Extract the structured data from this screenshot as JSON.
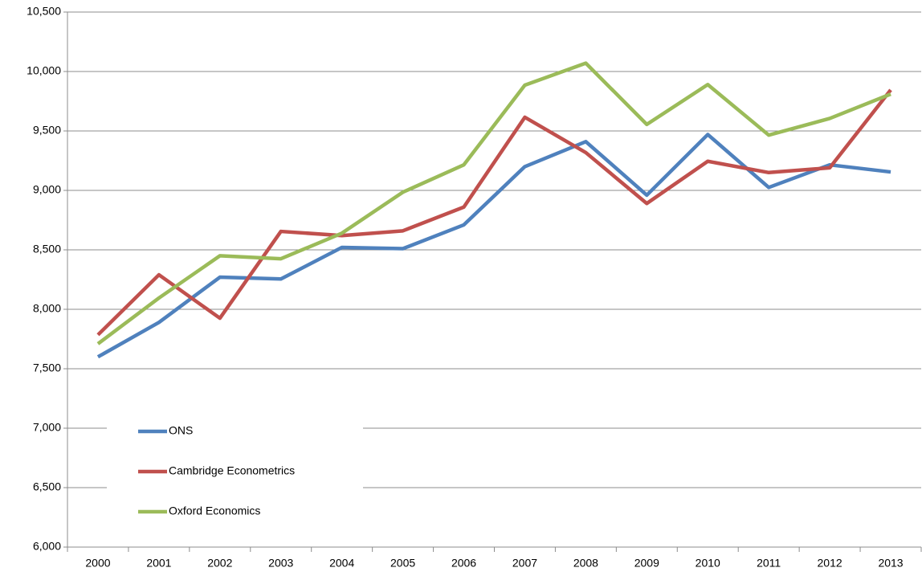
{
  "chart_data": {
    "type": "line",
    "categories": [
      "2000",
      "2001",
      "2002",
      "2003",
      "2004",
      "2005",
      "2006",
      "2007",
      "2008",
      "2009",
      "2010",
      "2011",
      "2012",
      "2013"
    ],
    "series": [
      {
        "name": "ONS",
        "color": "#4f81bd",
        "values": [
          7600,
          7890,
          8270,
          8255,
          8520,
          8510,
          8710,
          9200,
          9410,
          8960,
          9470,
          9025,
          9215,
          9155
        ]
      },
      {
        "name": "Cambridge Econometrics",
        "color": "#c0504d",
        "values": [
          7785,
          8290,
          7925,
          8655,
          8620,
          8660,
          8860,
          9615,
          9318,
          8890,
          9245,
          9150,
          9190,
          9845
        ]
      },
      {
        "name": "Oxford Economics",
        "color": "#9bbb59",
        "values": [
          7710,
          8095,
          8450,
          8425,
          8640,
          8985,
          9215,
          9885,
          10070,
          9555,
          9890,
          9465,
          9605,
          9810
        ]
      }
    ],
    "ylim": [
      6000,
      10500
    ],
    "yticks": [
      {
        "value": 6000,
        "label": "6,000"
      },
      {
        "value": 6500,
        "label": "6,500"
      },
      {
        "value": 7000,
        "label": "7,000"
      },
      {
        "value": 7500,
        "label": "7,500"
      },
      {
        "value": 8000,
        "label": "8,000"
      },
      {
        "value": 8500,
        "label": "8,500"
      },
      {
        "value": 9000,
        "label": "9,000"
      },
      {
        "value": 9500,
        "label": "9,500"
      },
      {
        "value": 10000,
        "label": "10,000"
      },
      {
        "value": 10500,
        "label": "10,500"
      }
    ],
    "grid": true,
    "legend": "lower left"
  }
}
